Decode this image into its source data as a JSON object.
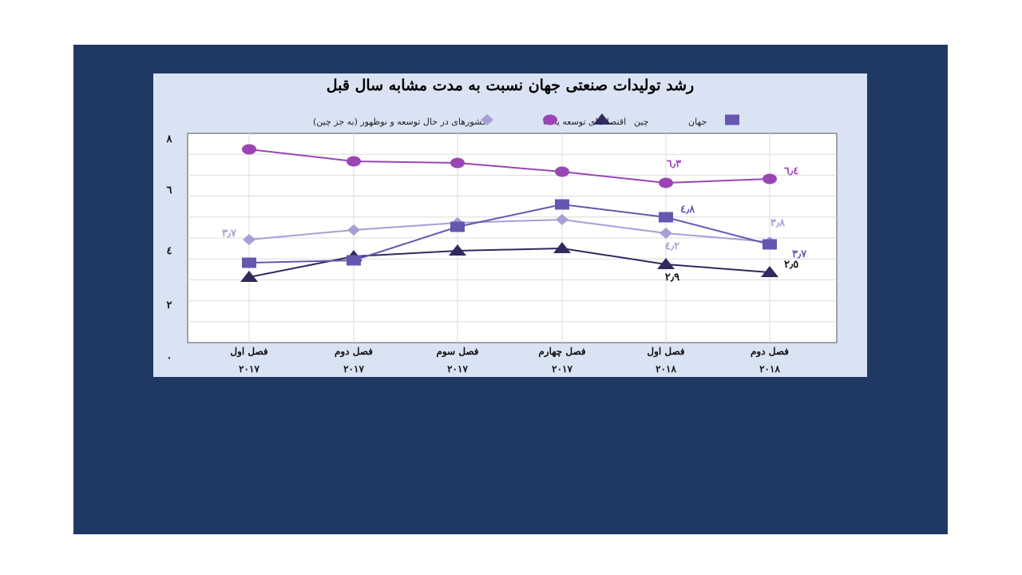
{
  "chart_data": {
    "type": "line",
    "title": "رشد تولیدات صنعتی جهان نسبت به مدت مشابه سال قبل",
    "categories": [
      {
        "quarter": "فصل اول",
        "year": "۲۰۱۷"
      },
      {
        "quarter": "فصل دوم",
        "year": "۲۰۱۷"
      },
      {
        "quarter": "فصل سوم",
        "year": "۲۰۱۷"
      },
      {
        "quarter": "فصل چهارم",
        "year": "۲۰۱۷"
      },
      {
        "quarter": "فصل اول",
        "year": "۲۰۱۸"
      },
      {
        "quarter": "فصل دوم",
        "year": "۲۰۱۸"
      }
    ],
    "yticks": [
      {
        "value": 8,
        "label": "۸"
      },
      {
        "value": 6,
        "label": "٦"
      },
      {
        "value": 4,
        "label": "٤"
      },
      {
        "value": 2,
        "label": "۲"
      },
      {
        "value": 0,
        "label": "۰"
      }
    ],
    "ylim": [
      0,
      8
    ],
    "grid": true,
    "legend_position": "top",
    "series": [
      {
        "name": "جهان",
        "key": "world",
        "color": "#a59fd6",
        "marker": "diamond",
        "values": [
          3.7,
          4.0,
          4.3,
          4.4,
          4.2,
          3.8
        ],
        "labels": [
          {
            "index": 0,
            "text": "۳٫۷",
            "pos": "left"
          },
          {
            "index": 4,
            "text": "٤٫۲",
            "pos": "below"
          },
          {
            "index": 5,
            "text": "۳٫۸",
            "pos": "above"
          }
        ]
      },
      {
        "name": "چین",
        "key": "china",
        "color": "#9b45b5",
        "marker": "circle",
        "values": [
          6.8,
          6.9,
          6.3,
          6.5,
          6.3,
          6.4
        ],
        "labels": [
          {
            "index": 4,
            "text": "٦٫۳",
            "pos": "above"
          },
          {
            "index": 5,
            "text": "٦٫٤",
            "pos": "right"
          }
        ]
      },
      {
        "name": "اقتصادهای توسعه یافته",
        "key": "developed",
        "color": "#302a5e",
        "marker": "triangle",
        "values": [
          2.6,
          3.3,
          3.4,
          3.5,
          2.9,
          2.5
        ],
        "labels": [
          {
            "index": 4,
            "text": "۲٫۹",
            "pos": "below"
          },
          {
            "index": 5,
            "text": "۲٫٥",
            "pos": "right"
          }
        ]
      },
      {
        "name": "کشورهای در حال توسعه و نوظهور (به جز چین)",
        "key": "emerging",
        "color": "#6656b0",
        "marker": "square",
        "values": [
          2.9,
          3.0,
          4.2,
          5.2,
          4.8,
          3.7
        ],
        "labels": [
          {
            "index": 4,
            "text": "٤٫۸",
            "pos": "right"
          },
          {
            "index": 5,
            "text": "۳٫۷",
            "pos": "below-right"
          }
        ]
      }
    ]
  }
}
